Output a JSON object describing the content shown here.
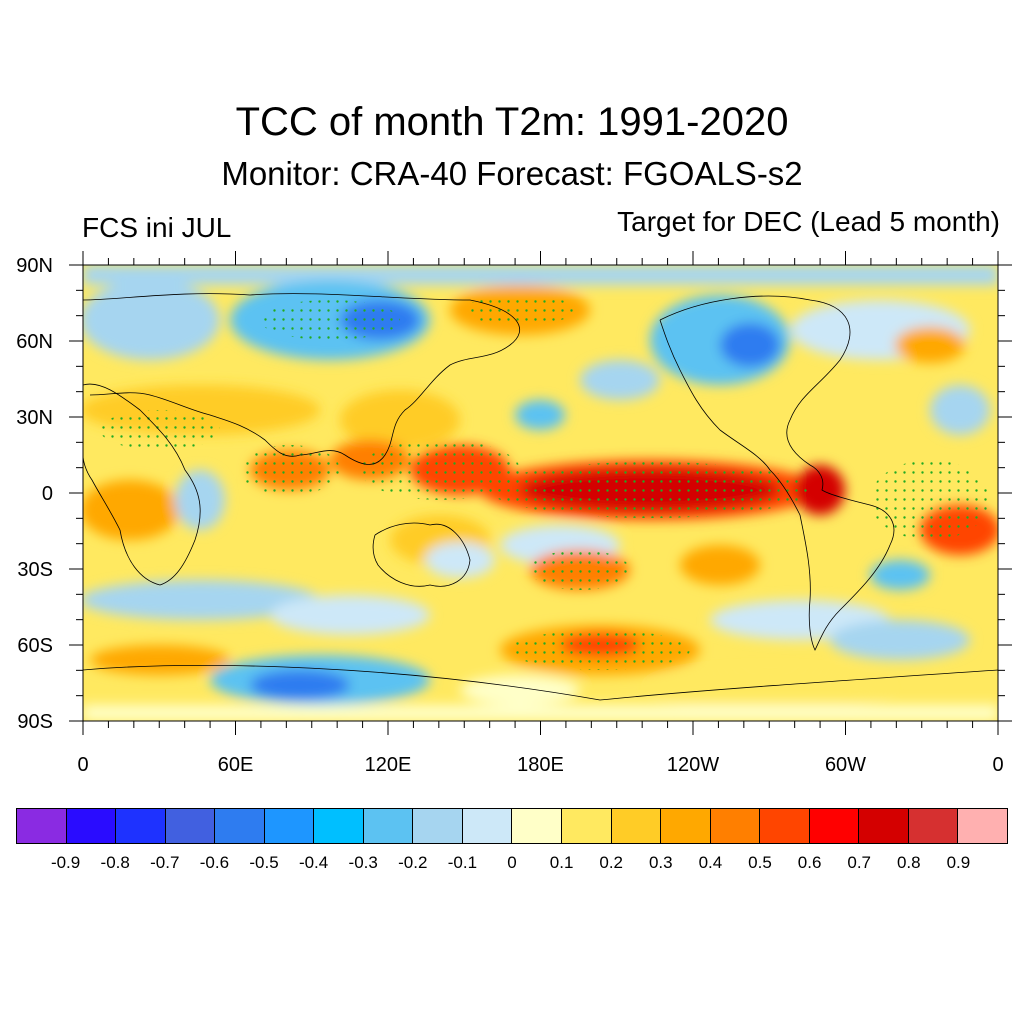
{
  "title": "TCC of month T2m: 1991-2020",
  "subtitle": "Monitor: CRA-40   Forecast: FGOALS-s2",
  "left_label": "FCS ini JUL",
  "right_label": "Target for DEC (Lead 5 month)",
  "lat_ticks": [
    "90N",
    "60N",
    "30N",
    "0",
    "30S",
    "60S",
    "90S"
  ],
  "lon_ticks": [
    "0",
    "60E",
    "120E",
    "180E",
    "120W",
    "60W",
    "0"
  ],
  "colorbar": {
    "colors": [
      "#8a2be2",
      "#2a0cff",
      "#1e32ff",
      "#4160e0",
      "#2e7cf0",
      "#1e96ff",
      "#00bfff",
      "#5cc2f2",
      "#a6d5f0",
      "#cde8f8",
      "#ffffc8",
      "#ffe960",
      "#ffcc26",
      "#ffa800",
      "#ff7f00",
      "#ff4500",
      "#ff0000",
      "#d40000",
      "#d63030",
      "#ffb0b0"
    ],
    "labels": [
      "-0.9",
      "-0.8",
      "-0.7",
      "-0.6",
      "-0.5",
      "-0.4",
      "-0.3",
      "-0.2",
      "-0.1",
      "0",
      "0.1",
      "0.2",
      "0.3",
      "0.4",
      "0.5",
      "0.6",
      "0.7",
      "0.8",
      "0.9"
    ]
  }
}
